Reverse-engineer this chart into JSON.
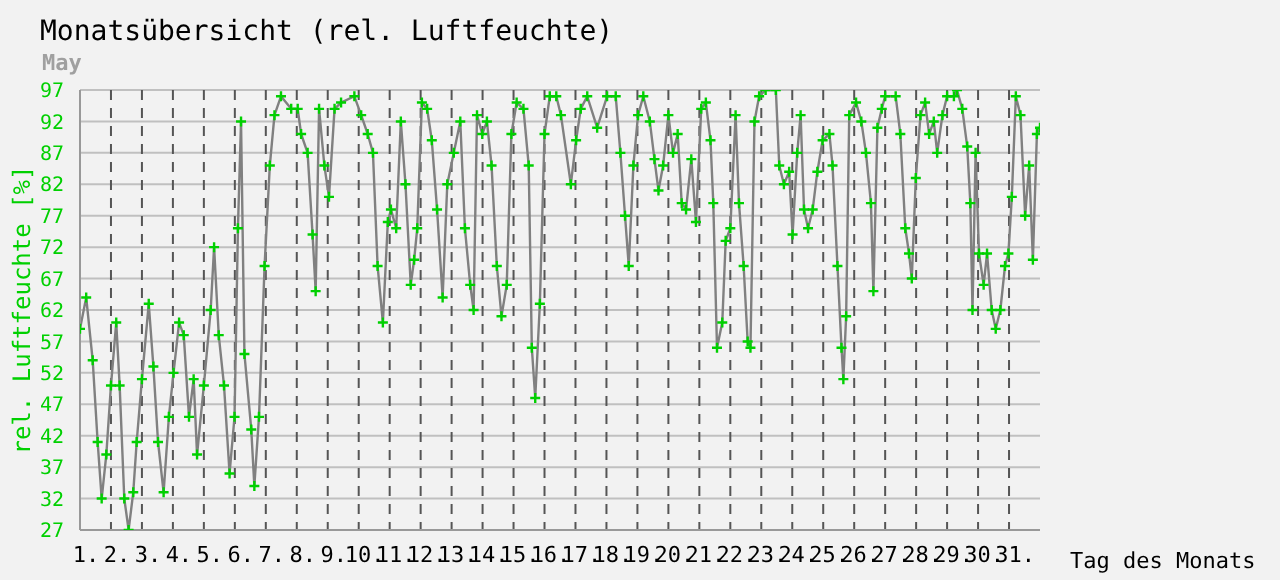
{
  "chart_data": {
    "type": "line",
    "title": "Monatsübersicht (rel. Luftfeuchte)",
    "subtitle": "May",
    "ylabel": "rel. Luftfeuchte [%]",
    "xlabel": "Tag des Monats",
    "xlim": [
      1,
      32
    ],
    "xticks": [
      {
        "value": 1,
        "label": "1."
      },
      {
        "value": 2,
        "label": "2."
      },
      {
        "value": 3,
        "label": "3."
      },
      {
        "value": 4,
        "label": "4."
      },
      {
        "value": 5,
        "label": "5."
      },
      {
        "value": 6,
        "label": "6."
      },
      {
        "value": 7,
        "label": "7."
      },
      {
        "value": 8,
        "label": "8."
      },
      {
        "value": 9,
        "label": "9."
      },
      {
        "value": 10,
        "label": "10."
      },
      {
        "value": 11,
        "label": "11."
      },
      {
        "value": 12,
        "label": "12."
      },
      {
        "value": 13,
        "label": "13."
      },
      {
        "value": 14,
        "label": "14."
      },
      {
        "value": 15,
        "label": "15."
      },
      {
        "value": 16,
        "label": "16."
      },
      {
        "value": 17,
        "label": "17."
      },
      {
        "value": 18,
        "label": "18."
      },
      {
        "value": 19,
        "label": "19."
      },
      {
        "value": 20,
        "label": "20."
      },
      {
        "value": 21,
        "label": "21."
      },
      {
        "value": 22,
        "label": "22."
      },
      {
        "value": 23,
        "label": "23."
      },
      {
        "value": 24,
        "label": "24."
      },
      {
        "value": 25,
        "label": "25."
      },
      {
        "value": 26,
        "label": "26."
      },
      {
        "value": 27,
        "label": "27."
      },
      {
        "value": 28,
        "label": "28."
      },
      {
        "value": 29,
        "label": "29."
      },
      {
        "value": 30,
        "label": "30."
      },
      {
        "value": 31,
        "label": "31."
      }
    ],
    "ylim": [
      27,
      97
    ],
    "yticks": [
      27,
      32,
      37,
      42,
      47,
      52,
      57,
      62,
      67,
      72,
      77,
      82,
      87,
      92,
      97
    ],
    "grid": true,
    "marker": "cross",
    "line_style": "solid",
    "x": [
      1.0,
      1.2,
      1.41,
      1.57,
      1.7,
      1.85,
      2.0,
      2.17,
      2.28,
      2.43,
      2.57,
      2.72,
      2.83,
      3.0,
      3.22,
      3.37,
      3.52,
      3.7,
      3.87,
      4.02,
      4.2,
      4.35,
      4.52,
      4.67,
      4.78,
      5.0,
      5.22,
      5.33,
      5.48,
      5.65,
      5.83,
      5.99,
      6.1,
      6.2,
      6.31,
      6.53,
      6.63,
      6.78,
      6.96,
      7.13,
      7.28,
      7.49,
      7.82,
      8.03,
      8.14,
      8.35,
      8.51,
      8.61,
      8.72,
      8.89,
      9.04,
      9.22,
      9.43,
      9.86,
      10.08,
      10.29,
      10.46,
      10.61,
      10.78,
      10.94,
      11.04,
      11.21,
      11.36,
      11.51,
      11.68,
      11.79,
      11.89,
      12.04,
      12.21,
      12.36,
      12.53,
      12.71,
      12.86,
      13.07,
      13.28,
      13.43,
      13.6,
      13.71,
      13.82,
      13.99,
      14.14,
      14.29,
      14.46,
      14.61,
      14.78,
      14.93,
      15.1,
      15.32,
      15.49,
      15.59,
      15.7,
      15.85,
      16.0,
      16.17,
      16.38,
      16.53,
      16.85,
      17.02,
      17.17,
      17.38,
      17.7,
      18.02,
      18.3,
      18.45,
      18.6,
      18.72,
      18.87,
      19.02,
      19.19,
      19.4,
      19.55,
      19.68,
      19.83,
      20.0,
      20.15,
      20.3,
      20.43,
      20.57,
      20.74,
      20.89,
      21.06,
      21.21,
      21.36,
      21.45,
      21.57,
      21.74,
      21.85,
      22.0,
      22.17,
      22.28,
      22.43,
      22.56,
      22.65,
      22.78,
      22.93,
      23.14,
      23.47,
      23.58,
      23.73,
      23.9,
      24.01,
      24.16,
      24.27,
      24.38,
      24.51,
      24.66,
      24.81,
      24.98,
      25.2,
      25.3,
      25.46,
      25.59,
      25.65,
      25.74,
      25.84,
      26.06,
      26.23,
      26.38,
      26.54,
      26.62,
      26.75,
      26.89,
      27.0,
      27.34,
      27.49,
      27.65,
      27.77,
      27.86,
      27.99,
      28.14,
      28.29,
      28.42,
      28.57,
      28.68,
      28.85,
      29.0,
      29.22,
      29.32,
      29.49,
      29.65,
      29.75,
      29.82,
      29.92,
      30.03,
      30.18,
      30.29,
      30.44,
      30.57,
      30.72,
      30.87,
      30.98,
      31.09,
      31.22,
      31.37,
      31.52,
      31.65,
      31.77,
      31.9,
      32.0
    ],
    "series": [
      {
        "color": "#808080",
        "values": [
          59,
          64,
          54,
          41,
          32,
          39,
          50,
          60,
          50,
          32,
          27,
          33,
          41,
          51,
          63,
          53,
          41,
          33,
          45,
          52,
          60,
          58,
          45,
          51,
          39,
          50,
          62,
          72,
          58,
          50,
          36,
          45,
          75,
          92,
          55,
          43,
          34,
          45,
          69,
          85,
          93,
          96,
          94,
          94,
          90,
          87,
          74,
          65,
          94,
          85,
          80,
          94,
          95,
          96,
          93,
          90,
          87,
          69,
          60,
          76,
          78,
          75,
          92,
          82,
          66,
          70,
          75,
          95,
          94,
          89,
          78,
          64,
          82,
          87,
          92,
          75,
          66,
          62,
          93,
          90,
          92,
          85,
          69,
          61,
          66,
          90,
          95,
          94,
          85,
          56,
          48,
          63,
          90,
          96,
          96,
          93,
          82,
          89,
          94,
          96,
          91,
          96,
          96,
          87,
          77,
          69,
          85,
          93,
          96,
          92,
          86,
          81,
          85,
          93,
          87,
          90,
          79,
          78,
          86,
          76,
          94,
          95,
          89,
          79,
          56,
          60,
          73,
          75,
          93,
          79,
          69,
          57,
          56,
          92,
          96,
          97,
          97,
          85,
          82,
          84,
          74,
          87,
          93,
          78,
          75,
          78,
          84,
          89,
          90,
          85,
          69,
          56,
          51,
          61,
          93,
          95,
          92,
          87,
          79,
          65,
          91,
          94,
          96,
          96,
          90,
          75,
          71,
          67,
          83,
          93,
          95,
          90,
          92,
          87,
          93,
          96,
          96,
          97,
          94,
          88,
          79,
          62,
          87,
          71,
          66,
          71,
          62,
          59,
          62,
          69,
          71,
          80,
          96,
          93,
          77,
          85,
          70,
          90,
          91
        ]
      }
    ]
  }
}
